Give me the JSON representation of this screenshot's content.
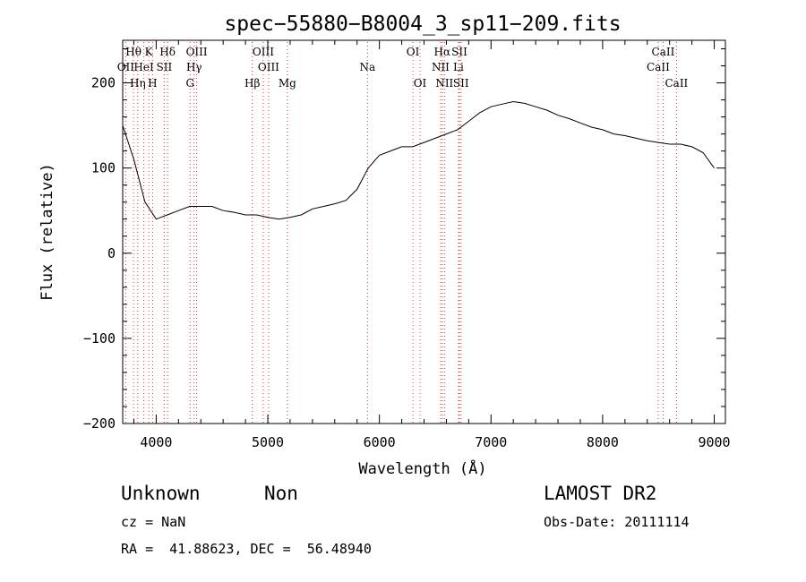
{
  "chart_data": {
    "type": "line",
    "title": "spec−55880−B8004_3_sp11−209.fits",
    "xlabel": "Wavelength (Å)",
    "ylabel": "Flux (relative)",
    "xlim": [
      3700,
      9100
    ],
    "ylim": [
      -200,
      250
    ],
    "xticks": [
      4000,
      5000,
      6000,
      7000,
      8000,
      9000
    ],
    "yticks": [
      -200,
      -100,
      0,
      100,
      200
    ],
    "x": [
      3700,
      3800,
      3900,
      4000,
      4100,
      4200,
      4300,
      4400,
      4500,
      4600,
      4700,
      4800,
      4900,
      5000,
      5100,
      5200,
      5300,
      5400,
      5500,
      5600,
      5700,
      5800,
      5900,
      6000,
      6100,
      6200,
      6300,
      6400,
      6500,
      6600,
      6700,
      6800,
      6900,
      7000,
      7100,
      7200,
      7300,
      7400,
      7500,
      7600,
      7700,
      7800,
      7900,
      8000,
      8100,
      8200,
      8300,
      8400,
      8500,
      8600,
      8700,
      8800,
      8900,
      9000
    ],
    "y": [
      150,
      110,
      60,
      40,
      45,
      50,
      55,
      55,
      55,
      50,
      48,
      45,
      45,
      42,
      40,
      42,
      45,
      52,
      55,
      58,
      62,
      75,
      100,
      115,
      120,
      125,
      125,
      130,
      135,
      140,
      145,
      155,
      165,
      172,
      175,
      178,
      176,
      172,
      168,
      162,
      158,
      153,
      148,
      145,
      140,
      138,
      135,
      132,
      130,
      128,
      128,
      125,
      118,
      100
    ],
    "lines": [
      {
        "name": "Hθ",
        "wl": 3797,
        "row": 1
      },
      {
        "name": "K",
        "wl": 3934,
        "row": 1
      },
      {
        "name": "Hδ",
        "wl": 4102,
        "row": 1
      },
      {
        "name": "OIII",
        "wl": 4363,
        "row": 1
      },
      {
        "name": "OIII",
        "wl": 4959,
        "row": 1
      },
      {
        "name": "OI",
        "wl": 6300,
        "row": 1
      },
      {
        "name": "Hα",
        "wl": 6563,
        "row": 1
      },
      {
        "name": "SII",
        "wl": 6717,
        "row": 1
      },
      {
        "name": "CaII",
        "wl": 8542,
        "row": 1
      },
      {
        "name": "OII",
        "wl": 3727,
        "row": 2
      },
      {
        "name": "HeI",
        "wl": 3889,
        "row": 2
      },
      {
        "name": "SII",
        "wl": 4072,
        "row": 2
      },
      {
        "name": "Hγ",
        "wl": 4340,
        "row": 2
      },
      {
        "name": "OIII",
        "wl": 5007,
        "row": 2
      },
      {
        "name": "Na",
        "wl": 5893,
        "row": 2
      },
      {
        "name": "NII",
        "wl": 6548,
        "row": 2
      },
      {
        "name": "Li",
        "wl": 6708,
        "row": 2
      },
      {
        "name": "CaII",
        "wl": 8498,
        "row": 2
      },
      {
        "name": "Hη",
        "wl": 3835,
        "row": 3
      },
      {
        "name": "H",
        "wl": 3968,
        "row": 3
      },
      {
        "name": "G",
        "wl": 4304,
        "row": 3
      },
      {
        "name": "Hβ",
        "wl": 4861,
        "row": 3
      },
      {
        "name": "Mg",
        "wl": 5175,
        "row": 3
      },
      {
        "name": "OI",
        "wl": 6364,
        "row": 3
      },
      {
        "name": "NII",
        "wl": 6583,
        "row": 3
      },
      {
        "name": "SII",
        "wl": 6731,
        "row": 3
      },
      {
        "name": "CaII",
        "wl": 8662,
        "row": 3
      }
    ],
    "line_color": "#000000",
    "marker_color": "#dd3333"
  },
  "info": {
    "object_class": "Unknown",
    "subclass": "Non",
    "survey": "LAMOST DR2",
    "redshift": "cz = NaN",
    "obs_date": "Obs-Date: 20111114",
    "coords": "RA =  41.88623, DEC =  56.48940"
  }
}
